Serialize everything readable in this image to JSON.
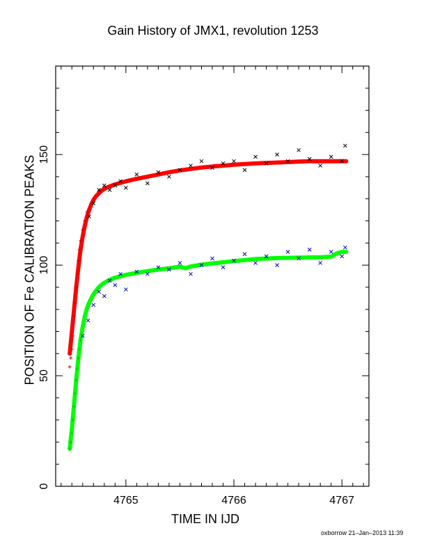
{
  "chart_data": {
    "type": "scatter",
    "title": "Gain History of JMX1, revolution 1253",
    "xlabel": "TIME IN IJD",
    "ylabel": "POSITION OF Fe CALIBRATION PEAKS",
    "xlim": [
      4764.35,
      4767.25
    ],
    "ylim": [
      0,
      190
    ],
    "x_ticks": [
      4765,
      4766,
      4767
    ],
    "y_ticks": [
      0,
      50,
      100,
      150
    ],
    "grid": false,
    "series": [
      {
        "marker": "x",
        "color": "#000000",
        "x": [
          4764.66,
          4764.7,
          4764.75,
          4764.8,
          4764.85,
          4764.9,
          4764.95,
          4765.0,
          4765.1,
          4765.2,
          4765.3,
          4765.4,
          4765.5,
          4765.6,
          4765.7,
          4765.8,
          4765.9,
          4766.0,
          4766.1,
          4766.2,
          4766.3,
          4766.4,
          4766.5,
          4766.6,
          4766.7,
          4766.8,
          4766.9,
          4767.0,
          4767.03
        ],
        "values": [
          122,
          128,
          134,
          136,
          134,
          136,
          138,
          135,
          141,
          137,
          142,
          140,
          143,
          145,
          147,
          144,
          146,
          147,
          143,
          149,
          146,
          150,
          147,
          152,
          148,
          145,
          149,
          147,
          154
        ]
      },
      {
        "marker": "+",
        "color": "#cc0000",
        "x": [
          4764.48,
          4764.49,
          4764.5,
          4764.51,
          4764.52,
          4764.53,
          4764.54,
          4764.55,
          4764.56,
          4764.57,
          4764.58,
          4764.6,
          4764.62,
          4764.64
        ],
        "values": [
          54,
          58,
          62,
          68,
          77,
          83,
          90,
          96,
          102,
          107,
          111,
          116,
          120,
          124
        ]
      },
      {
        "marker": "x",
        "color": "#0000cc",
        "x": [
          4764.6,
          4764.65,
          4764.7,
          4764.75,
          4764.8,
          4764.85,
          4764.9,
          4764.95,
          4765.0,
          4765.1,
          4765.2,
          4765.3,
          4765.4,
          4765.5,
          4765.6,
          4765.7,
          4765.8,
          4765.9,
          4766.0,
          4766.1,
          4766.2,
          4766.3,
          4766.4,
          4766.5,
          4766.6,
          4766.7,
          4766.8,
          4766.9,
          4767.0,
          4767.03
        ],
        "values": [
          68,
          75,
          82,
          88,
          86,
          93,
          91,
          96,
          89,
          97,
          96,
          99,
          98,
          101,
          96,
          100,
          103,
          99,
          102,
          105,
          101,
          104,
          100,
          106,
          103,
          107,
          101,
          106,
          104,
          108
        ]
      },
      {
        "marker": "+",
        "color": "#00cc00",
        "x": [
          4764.48,
          4764.49,
          4764.5,
          4764.51,
          4764.52,
          4764.53,
          4764.54,
          4764.55,
          4764.56,
          4764.57,
          4764.58
        ],
        "values": [
          17,
          20,
          24,
          30,
          36,
          42,
          48,
          53,
          58,
          62,
          66
        ]
      }
    ],
    "lines": [
      {
        "color": "#ff0000",
        "x": [
          4764.48,
          4764.5,
          4764.52,
          4764.54,
          4764.56,
          4764.58,
          4764.6,
          4764.62,
          4764.64,
          4764.66,
          4764.68,
          4764.7,
          4764.72,
          4764.74,
          4764.76,
          4764.78,
          4764.8,
          4764.85,
          4764.9,
          4764.95,
          4765.0,
          4765.1,
          4765.2,
          4765.3,
          4765.4,
          4765.5,
          4765.6,
          4765.7,
          4765.8,
          4765.9,
          4766.0,
          4766.1,
          4766.2,
          4766.3,
          4766.4,
          4766.5,
          4766.6,
          4766.7,
          4766.8,
          4766.9,
          4767.0,
          4767.04
        ],
        "values": [
          60,
          70,
          80,
          90,
          99,
          107,
          113,
          118,
          122,
          125,
          127.5,
          129.5,
          131,
          132,
          133,
          133.8,
          134.5,
          135.6,
          136.5,
          137.2,
          137.9,
          139,
          140,
          141,
          142,
          142.8,
          143.5,
          144.1,
          144.6,
          145,
          145.4,
          145.7,
          146,
          146.2,
          146.4,
          146.6,
          146.8,
          147,
          147,
          147,
          147,
          147
        ]
      },
      {
        "color": "#00ff00",
        "x": [
          4764.48,
          4764.5,
          4764.52,
          4764.54,
          4764.56,
          4764.58,
          4764.6,
          4764.62,
          4764.64,
          4764.66,
          4764.68,
          4764.7,
          4764.72,
          4764.74,
          4764.76,
          4764.78,
          4764.8,
          4764.85,
          4764.9,
          4764.95,
          4765.0,
          4765.1,
          4765.2,
          4765.3,
          4765.4,
          4765.5,
          4765.55,
          4765.6,
          4765.7,
          4765.8,
          4765.9,
          4766.0,
          4766.1,
          4766.2,
          4766.3,
          4766.4,
          4766.5,
          4766.6,
          4766.7,
          4766.8,
          4766.9,
          4766.95,
          4767.0,
          4767.04
        ],
        "values": [
          17,
          26,
          37,
          48,
          58,
          66,
          72,
          77,
          80.5,
          83,
          85,
          86.8,
          88.2,
          89.5,
          90.5,
          91.3,
          92,
          93.3,
          94.3,
          95,
          95.6,
          96.5,
          97.3,
          98,
          98.6,
          99.3,
          98.6,
          99.4,
          100.2,
          100.8,
          101.3,
          101.8,
          102.3,
          102.8,
          103,
          103.2,
          103.3,
          103.4,
          103.5,
          103.6,
          103.8,
          105.3,
          106,
          106
        ]
      }
    ]
  },
  "footer_text": "oxborrow 21–Jan–2013 11:39"
}
